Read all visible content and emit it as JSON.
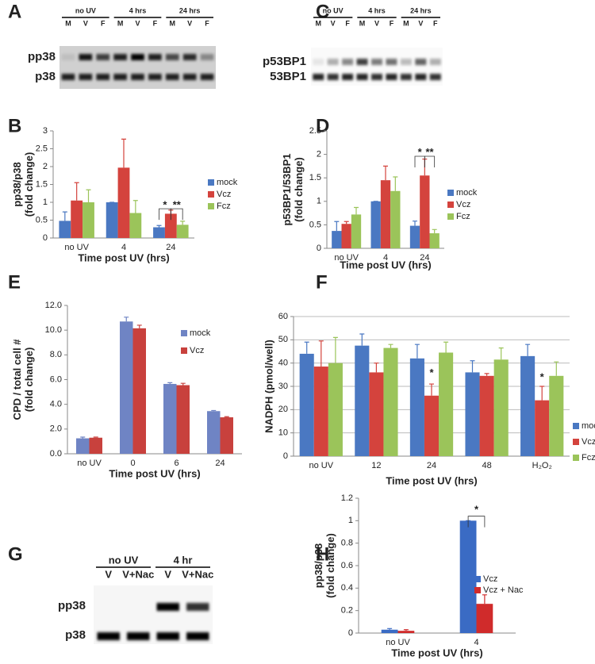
{
  "blots": [
    {
      "panel": "A",
      "groups": [
        {
          "label": "no UV",
          "lanes": [
            "M",
            "V",
            "F"
          ]
        },
        {
          "label": "4 hrs",
          "lanes": [
            "M",
            "V",
            "F"
          ]
        },
        {
          "label": "24 hrs",
          "lanes": [
            "M",
            "V",
            "F"
          ]
        }
      ],
      "rows": [
        "pp38",
        "p38"
      ]
    },
    {
      "panel": "C",
      "groups": [
        {
          "label": "no UV",
          "lanes": [
            "M",
            "V",
            "F"
          ]
        },
        {
          "label": "4 hrs",
          "lanes": [
            "M",
            "V",
            "F"
          ]
        },
        {
          "label": "24 hrs",
          "lanes": [
            "M",
            "V",
            "F"
          ]
        }
      ],
      "rows": [
        "p53BP1",
        "53BP1"
      ]
    },
    {
      "panel": "G",
      "groups": [
        {
          "label": "no UV",
          "lanes": [
            "V",
            "V+Nac"
          ]
        },
        {
          "label": "4 hr",
          "lanes": [
            "V",
            "V+Nac"
          ]
        }
      ],
      "rows": [
        "pp38",
        "p38"
      ]
    }
  ],
  "chart_data": [
    {
      "type": "bar",
      "panel": "B",
      "ylabel": [
        "pp38/p38",
        "(fold change)"
      ],
      "xlabel": "Time post UV (hrs)",
      "categories": [
        "no UV",
        "4",
        "24"
      ],
      "series": [
        {
          "name": "mock",
          "color": "#4a78c2",
          "values": [
            0.48,
            1.0,
            0.3
          ],
          "errors": [
            0.25,
            0,
            0.05
          ]
        },
        {
          "name": "Vcz",
          "color": "#d4433d",
          "values": [
            1.05,
            1.97,
            0.68
          ],
          "errors": [
            0.5,
            0.8,
            0.1
          ]
        },
        {
          "name": "Fcz",
          "color": "#9bc45a",
          "values": [
            1.0,
            0.7,
            0.37
          ],
          "errors": [
            0.35,
            0.35,
            0.1
          ]
        }
      ],
      "ylim": [
        0,
        3
      ],
      "yticks": [
        0,
        0.5,
        1,
        1.5,
        2,
        2.5,
        3
      ],
      "grid": false,
      "annotations": [
        "*",
        "**"
      ]
    },
    {
      "type": "bar",
      "panel": "D",
      "ylabel": [
        "p53BP1/53BP1",
        "(fold change)"
      ],
      "xlabel": "Time post UV (hrs)",
      "categories": [
        "no UV",
        "4",
        "24"
      ],
      "series": [
        {
          "name": "mock",
          "color": "#4a78c2",
          "values": [
            0.37,
            1.0,
            0.48
          ],
          "errors": [
            0.2,
            0,
            0.1
          ]
        },
        {
          "name": "Vcz",
          "color": "#d4433d",
          "values": [
            0.52,
            1.45,
            1.55
          ],
          "errors": [
            0.05,
            0.3,
            0.35
          ]
        },
        {
          "name": "Fcz",
          "color": "#9bc45a",
          "values": [
            0.72,
            1.22,
            0.32
          ],
          "errors": [
            0.15,
            0.3,
            0.08
          ]
        }
      ],
      "ylim": [
        0,
        2.5
      ],
      "yticks": [
        0,
        0.5,
        1,
        1.5,
        2,
        2.5
      ],
      "grid": false,
      "annotations": [
        "*",
        "**"
      ]
    },
    {
      "type": "bar",
      "panel": "E",
      "ylabel": [
        "CPD / total cell #",
        "(fold change)"
      ],
      "xlabel": "Time post UV (hrs)",
      "categories": [
        "no UV",
        "0",
        "6",
        "24"
      ],
      "series": [
        {
          "name": "mock",
          "color": "#6f84c4",
          "values": [
            1.25,
            10.7,
            5.65,
            3.45
          ],
          "errors": [
            0.1,
            0.35,
            0.1,
            0.05
          ]
        },
        {
          "name": "Vcz",
          "color": "#c8413d",
          "values": [
            1.3,
            10.15,
            5.55,
            2.95
          ],
          "errors": [
            0.05,
            0.25,
            0.15,
            0.05
          ]
        }
      ],
      "ylim": [
        0,
        12
      ],
      "yticks": [
        {
          "value": 0,
          "label": "0.0"
        },
        {
          "value": 2,
          "label": "2.0"
        },
        {
          "value": 4,
          "label": "4.0"
        },
        {
          "value": 6,
          "label": "6.0"
        },
        {
          "value": 8,
          "label": "8.0"
        },
        {
          "value": 10,
          "label": "10.0"
        },
        {
          "value": 12,
          "label": "12.0"
        }
      ],
      "grid": false,
      "annotations": []
    },
    {
      "type": "bar",
      "panel": "F",
      "ylabel": [
        "NADPH (pmol/well)"
      ],
      "xlabel": "Time post UV (hrs)",
      "categories": [
        "no UV",
        "12",
        "24",
        "48",
        "H₂O₂"
      ],
      "series": [
        {
          "name": "mock",
          "color": "#4a78c2",
          "values": [
            44,
            47.5,
            42,
            36,
            43
          ],
          "errors": [
            5,
            5,
            6,
            5,
            5
          ]
        },
        {
          "name": "Vcz",
          "color": "#d4433d",
          "values": [
            38.5,
            36,
            26,
            34.5,
            24
          ],
          "errors": [
            11,
            4,
            5,
            1,
            6
          ]
        },
        {
          "name": "Fcz",
          "color": "#9bc45a",
          "values": [
            40,
            46.5,
            44.5,
            41.5,
            34.5
          ],
          "errors": [
            11,
            1.5,
            4.5,
            5,
            6
          ]
        }
      ],
      "ylim": [
        0,
        60
      ],
      "yticks": [
        0,
        10,
        20,
        30,
        40,
        50,
        60
      ],
      "grid": true,
      "annotations": [
        "*",
        "*"
      ]
    },
    {
      "type": "bar",
      "panel": "H",
      "ylabel": [
        "pp38/p38",
        "(fold change)"
      ],
      "xlabel": "Time post UV (hrs)",
      "categories": [
        "no UV",
        "4"
      ],
      "series": [
        {
          "name": "Vcz",
          "color": "#3a6bc4",
          "values": [
            0.03,
            1.0
          ],
          "errors": [
            0.01,
            0
          ]
        },
        {
          "name": "Vcz + Nac",
          "color": "#d02b2b",
          "values": [
            0.02,
            0.26
          ],
          "errors": [
            0.01,
            0.08
          ]
        }
      ],
      "ylim": [
        0,
        1.2
      ],
      "yticks": [
        0,
        0.2,
        0.4,
        0.6,
        0.8,
        1,
        1.2
      ],
      "grid": false,
      "annotations": [
        "*"
      ]
    }
  ]
}
